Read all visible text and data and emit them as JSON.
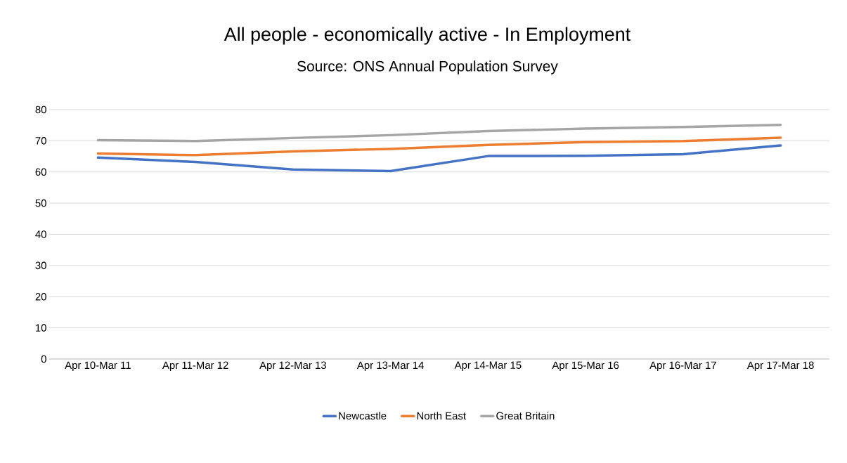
{
  "chart_data": {
    "type": "line",
    "title": "All people - economically active - In Employment",
    "subtitle": "Source: ONS Annual Population Survey",
    "categories": [
      "Apr 10-Mar 11",
      "Apr 11-Mar 12",
      "Apr 12-Mar 13",
      "Apr 13-Mar 14",
      "Apr 14-Mar 15",
      "Apr 15-Mar 16",
      "Apr 16-Mar 17",
      "Apr 17-Mar 18"
    ],
    "series": [
      {
        "name": "Newcastle",
        "color": "#4472c4",
        "values": [
          64.6,
          63.2,
          60.8,
          60.3,
          65.1,
          65.2,
          65.7,
          68.5
        ]
      },
      {
        "name": "North East",
        "color": "#ed7d31",
        "values": [
          65.9,
          65.4,
          66.6,
          67.4,
          68.7,
          69.6,
          69.9,
          71.0
        ]
      },
      {
        "name": "Great Britain",
        "color": "#a5a5a5",
        "values": [
          70.2,
          69.9,
          70.9,
          71.8,
          73.1,
          73.9,
          74.4,
          75.1
        ]
      }
    ],
    "ylim": [
      0,
      80
    ],
    "yticks": [
      0,
      10,
      20,
      30,
      40,
      50,
      60,
      70,
      80
    ],
    "grid": "y",
    "legend": "bottom",
    "marker": "none",
    "line_style": "solid"
  }
}
